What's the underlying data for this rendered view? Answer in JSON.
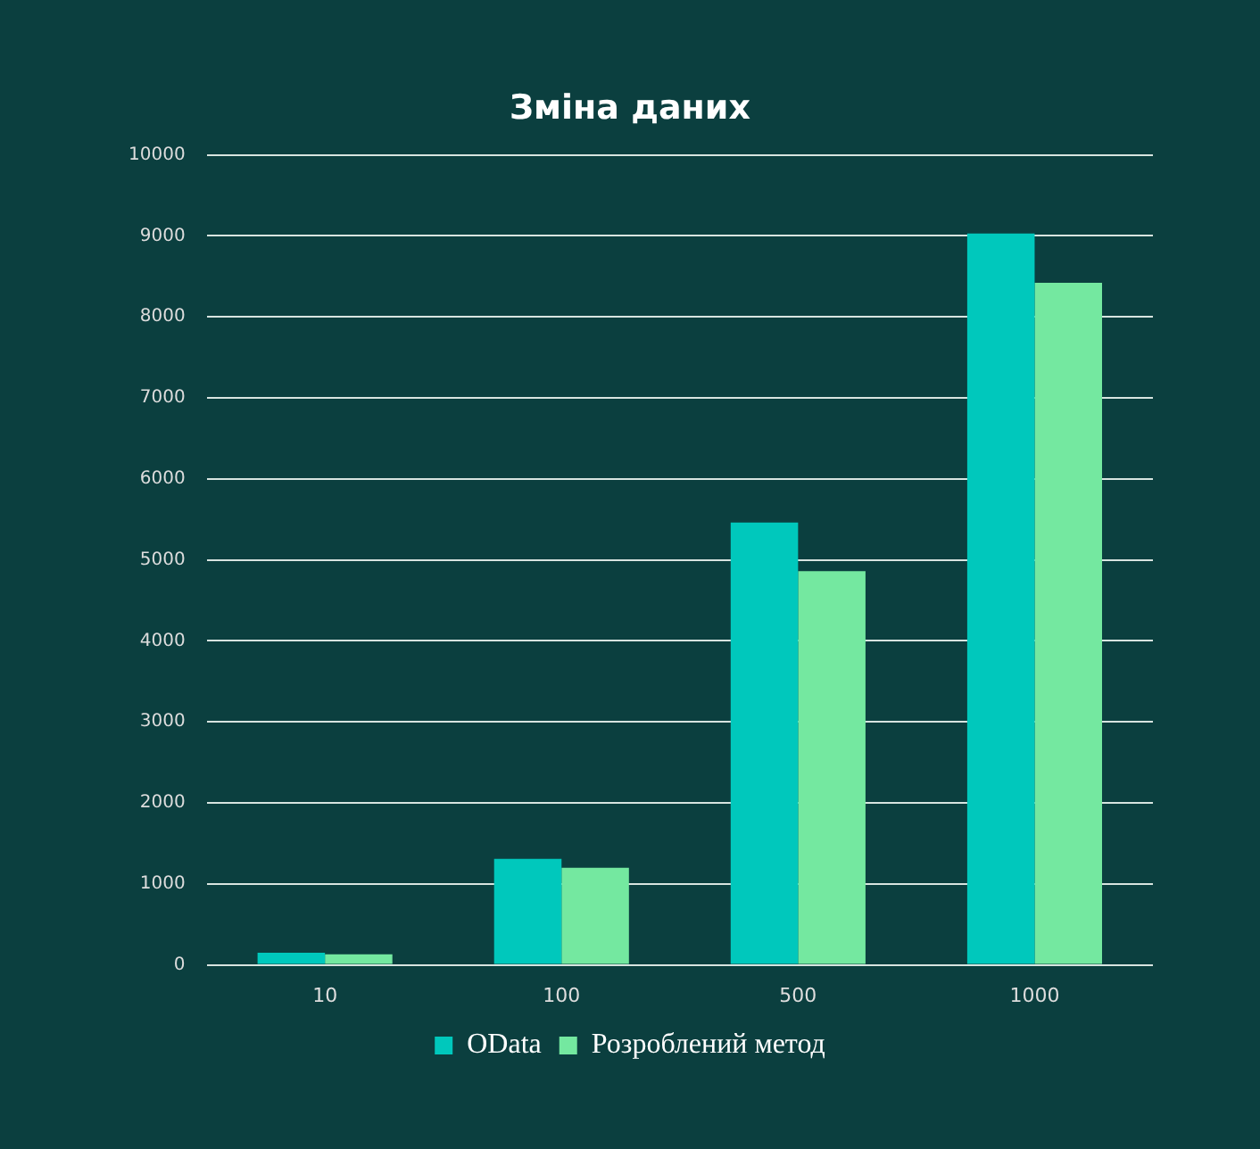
{
  "chart_data": {
    "type": "bar",
    "title": "Зміна даних",
    "categories": [
      "10",
      "100",
      "500",
      "1000"
    ],
    "series": [
      {
        "name": "OData",
        "color": "#00c8bc",
        "values": [
          150,
          1310,
          5460,
          9030
        ]
      },
      {
        "name": "Розроблений метод",
        "color": "#74e8a0",
        "values": [
          130,
          1200,
          4860,
          8420
        ]
      }
    ],
    "ylim": [
      0,
      10000
    ],
    "yticks": [
      0,
      1000,
      2000,
      3000,
      4000,
      5000,
      6000,
      7000,
      8000,
      9000,
      10000
    ],
    "grid": "y",
    "legend": "bottom"
  }
}
